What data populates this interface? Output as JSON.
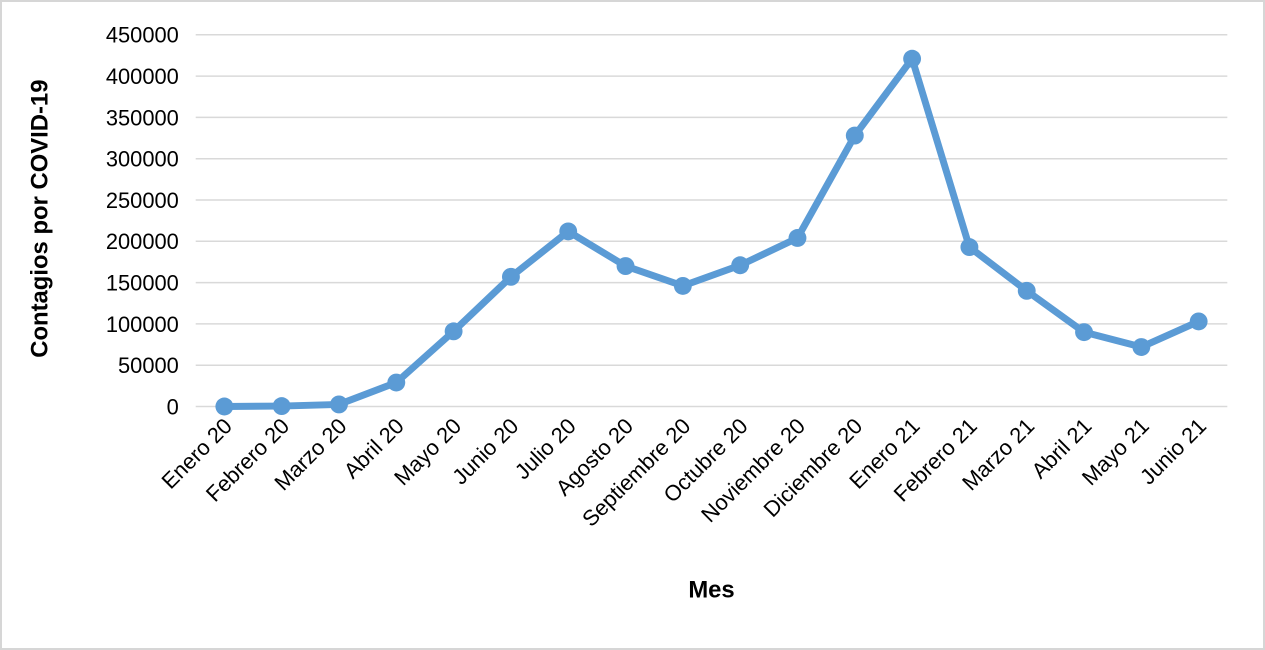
{
  "chart_data": {
    "type": "line",
    "title": "",
    "xlabel": "Mes",
    "ylabel": "Contagios por COVID-19",
    "categories": [
      "Enero 20",
      "Febrero 20",
      "Marzo 20",
      "Abril 20",
      "Mayo 20",
      "Junio 20",
      "Julio 20",
      "Agosto 20",
      "Septiembre 20",
      "Octubre 20",
      "Noviembre 20",
      "Diciembre 20",
      "Enero 21",
      "Febrero 21",
      "Marzo 21",
      "Abril 21",
      "Mayo 21",
      "Junio 21"
    ],
    "values": [
      0,
      500,
      2500,
      29000,
      91000,
      157000,
      212000,
      170000,
      146000,
      171000,
      204000,
      328000,
      421000,
      193000,
      140000,
      90000,
      72000,
      103000
    ],
    "ylim": [
      0,
      450000
    ],
    "ytick_step": 50000,
    "grid": true,
    "legend": "none",
    "line_color": "#5B9BD5",
    "marker_color": "#5B9BD5",
    "gridline_color": "#D9D9D9",
    "text_color": "#000000",
    "background_color": "#FFFFFF",
    "border_color": "#D6D6D6"
  }
}
